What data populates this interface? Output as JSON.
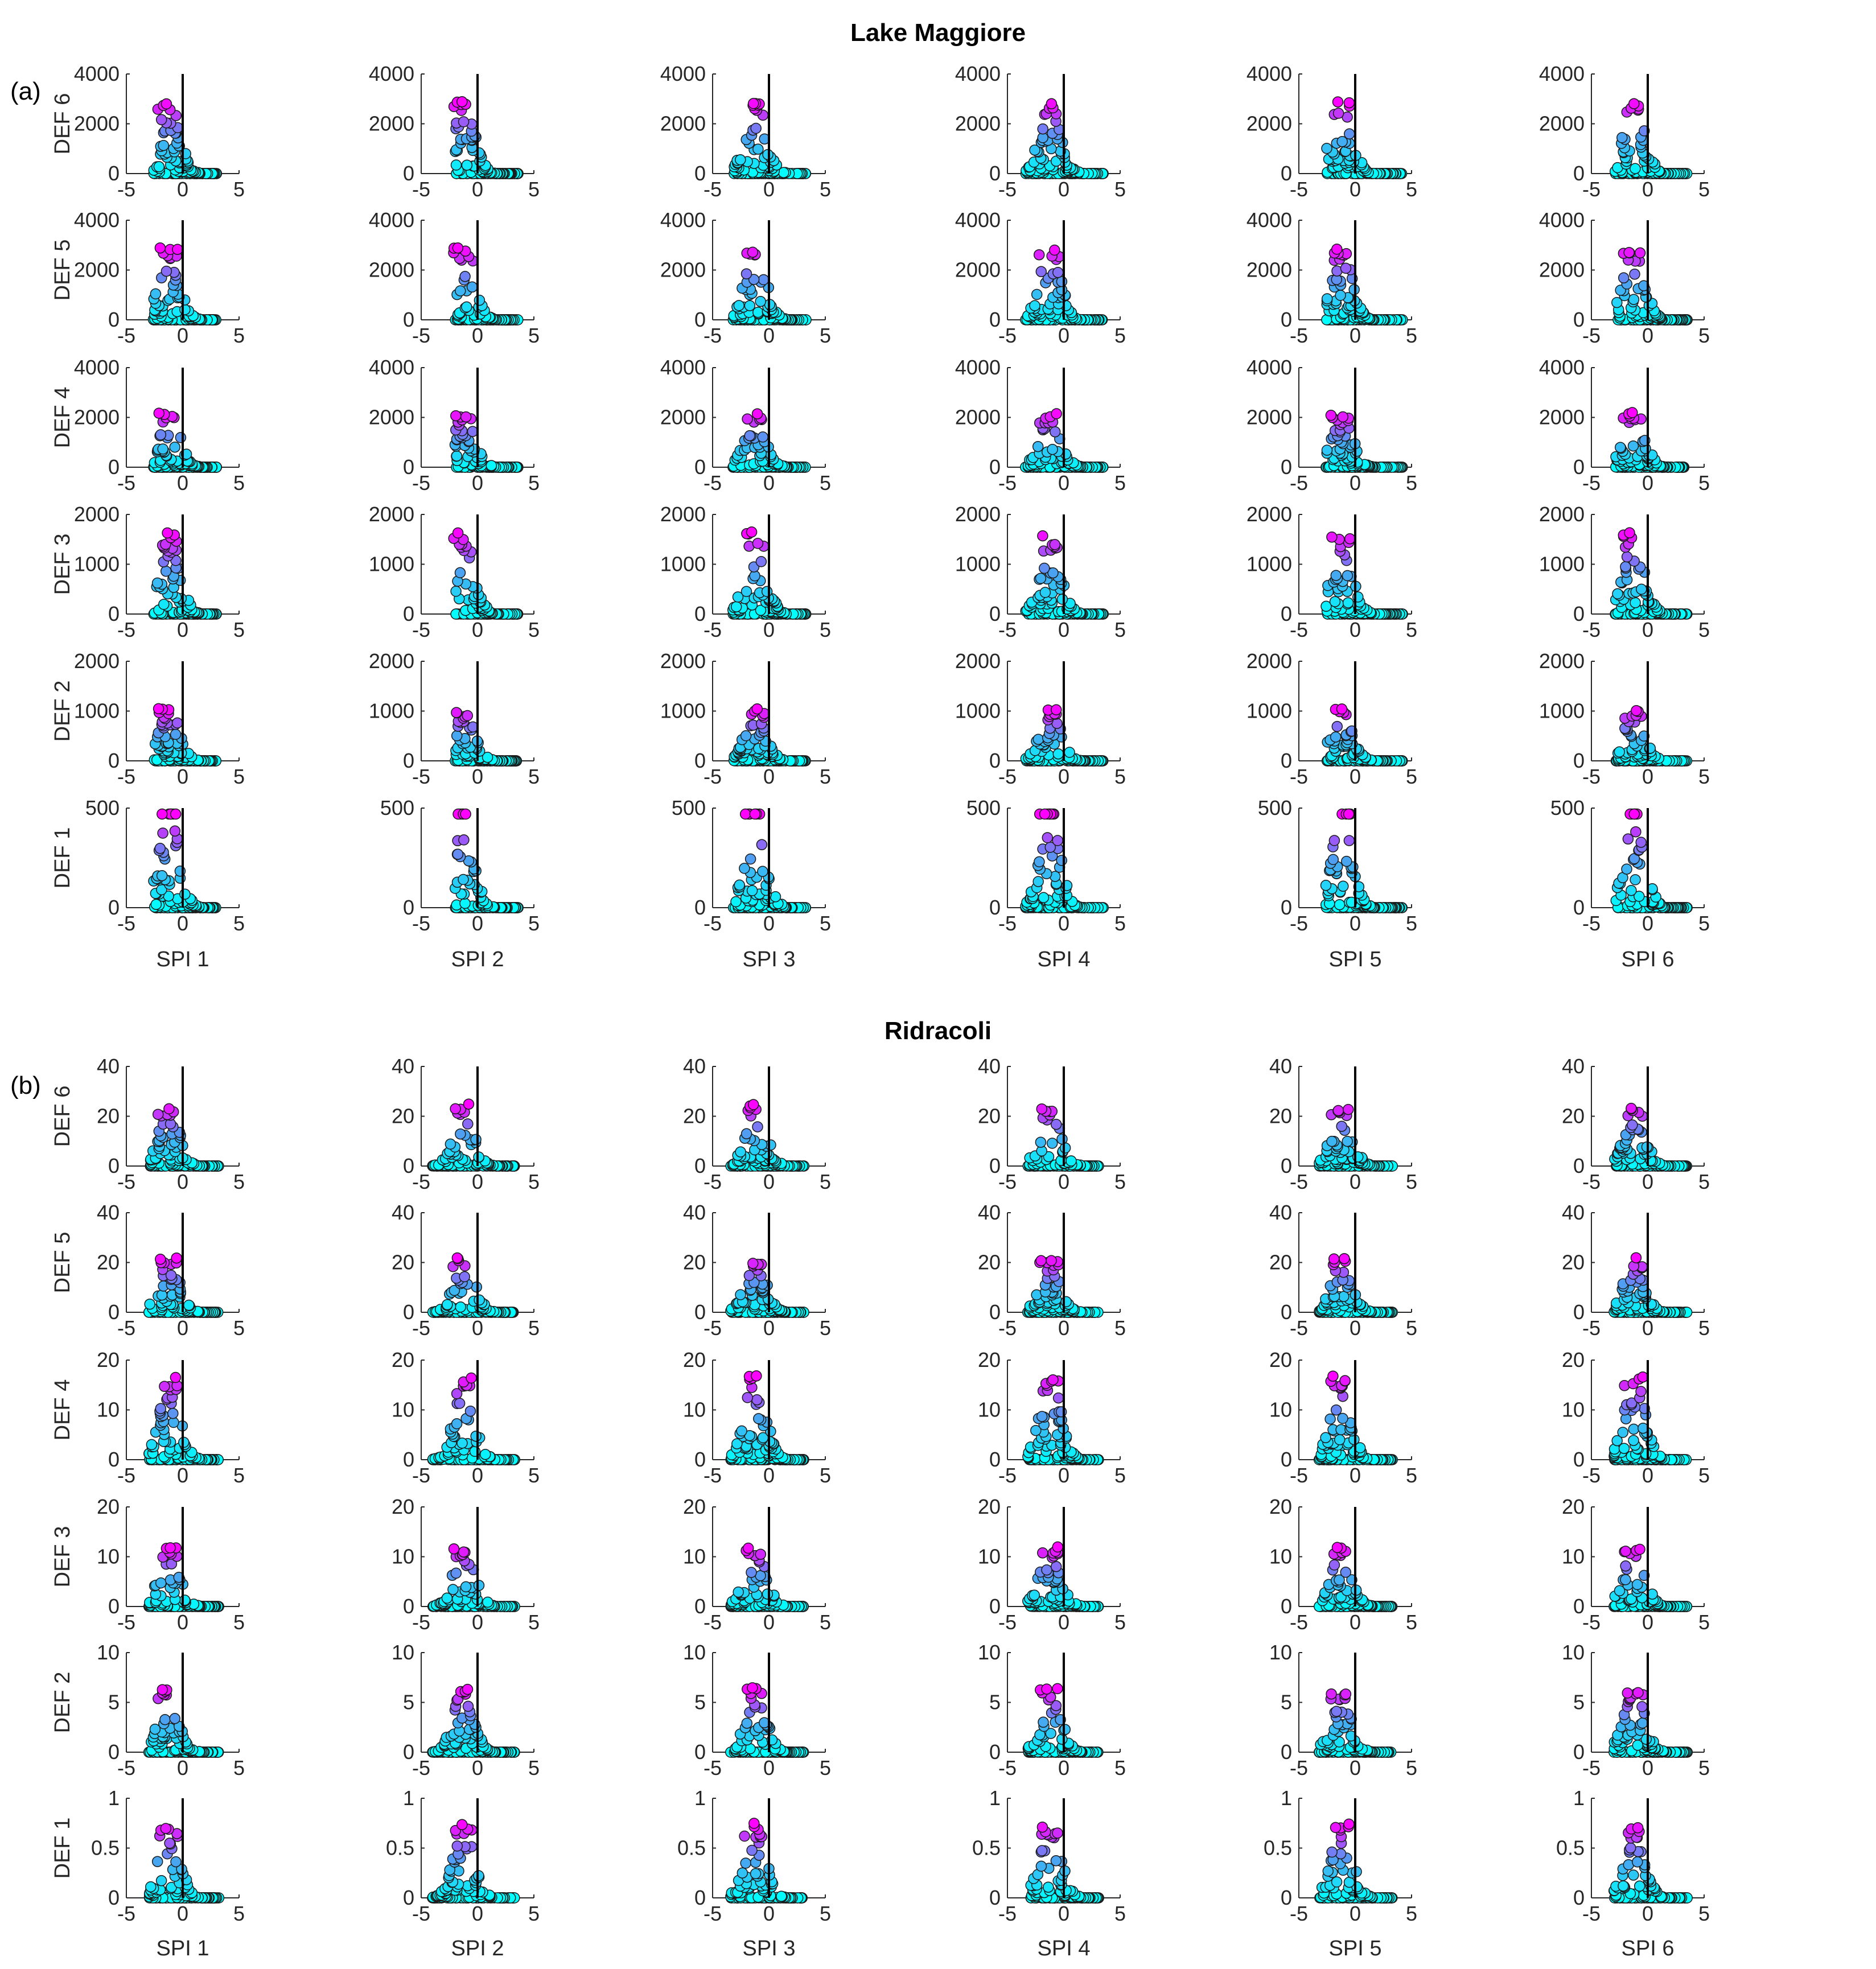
{
  "chart_data": [
    {
      "type": "scatter",
      "panel_label": "(a)",
      "title": "Lake Maggiore",
      "columns": [
        "SPI 1",
        "SPI 2",
        "SPI 3",
        "SPI 4",
        "SPI 5",
        "SPI 6"
      ],
      "rows": [
        "DEF 6",
        "DEF 5",
        "DEF 4",
        "DEF 3",
        "DEF 2",
        "DEF 1"
      ],
      "xlim": [
        -5,
        5
      ],
      "xticks": [
        "-5",
        "0",
        "5"
      ],
      "vertical_line_at_x": 0,
      "color_scale": {
        "low": "#00FFFF",
        "mid": "#4AA3F0",
        "high": "#FF00FF",
        "edge": "#1a1a1a"
      },
      "row_axes": [
        {
          "ymax": 4000,
          "yticks": [
            "0",
            "2000",
            "4000"
          ],
          "peak": 2900,
          "cap": false
        },
        {
          "ymax": 4000,
          "yticks": [
            "0",
            "2000",
            "4000"
          ],
          "peak": 2900,
          "cap": false
        },
        {
          "ymax": 4000,
          "yticks": [
            "0",
            "2000",
            "4000"
          ],
          "peak": 2200,
          "cap": false
        },
        {
          "ymax": 2000,
          "yticks": [
            "0",
            "1000",
            "2000"
          ],
          "peak": 1650,
          "cap": false
        },
        {
          "ymax": 2000,
          "yticks": [
            "0",
            "1000",
            "2000"
          ],
          "peak": 1050,
          "cap": false
        },
        {
          "ymax": 500,
          "yticks": [
            "0",
            "500"
          ],
          "peak": 470,
          "cap": true
        }
      ],
      "column_x_range": [
        [
          -2.6,
          3.0
        ],
        [
          -2.0,
          3.6
        ],
        [
          -3.2,
          3.3
        ],
        [
          -3.4,
          3.5
        ],
        [
          -2.6,
          4.2
        ],
        [
          -2.9,
          3.5
        ]
      ],
      "n_points_per_panel": 150
    },
    {
      "type": "scatter",
      "panel_label": "(b)",
      "title": "Ridracoli",
      "columns": [
        "SPI 1",
        "SPI 2",
        "SPI 3",
        "SPI 4",
        "SPI 5",
        "SPI 6"
      ],
      "rows": [
        "DEF 6",
        "DEF 5",
        "DEF 4",
        "DEF 3",
        "DEF 2",
        "DEF 1"
      ],
      "xlim": [
        -5,
        5
      ],
      "xticks": [
        "-5",
        "0",
        "5"
      ],
      "vertical_line_at_x": 0,
      "color_scale": {
        "low": "#00FFFF",
        "mid": "#4AA3F0",
        "high": "#FF00FF",
        "edge": "#1a1a1a"
      },
      "row_axes": [
        {
          "ymax": 40,
          "yticks": [
            "0",
            "20",
            "40"
          ],
          "peak": 25,
          "cap": false
        },
        {
          "ymax": 40,
          "yticks": [
            "0",
            "20",
            "40"
          ],
          "peak": 22,
          "cap": false
        },
        {
          "ymax": 20,
          "yticks": [
            "0",
            "10",
            "20"
          ],
          "peak": 17,
          "cap": false
        },
        {
          "ymax": 20,
          "yticks": [
            "0",
            "10",
            "20"
          ],
          "peak": 12,
          "cap": false
        },
        {
          "ymax": 10,
          "yticks": [
            "0",
            "5",
            "10"
          ],
          "peak": 6.5,
          "cap": false
        },
        {
          "ymax": 1,
          "yticks": [
            "0",
            "0.5",
            "1"
          ],
          "peak": 0.75,
          "cap": false
        }
      ],
      "column_x_range": [
        [
          -3.0,
          3.2
        ],
        [
          -4.0,
          3.3
        ],
        [
          -3.4,
          3.1
        ],
        [
          -3.2,
          3.1
        ],
        [
          -3.2,
          3.3
        ],
        [
          -3.0,
          3.5
        ]
      ],
      "n_points_per_panel": 150
    }
  ]
}
